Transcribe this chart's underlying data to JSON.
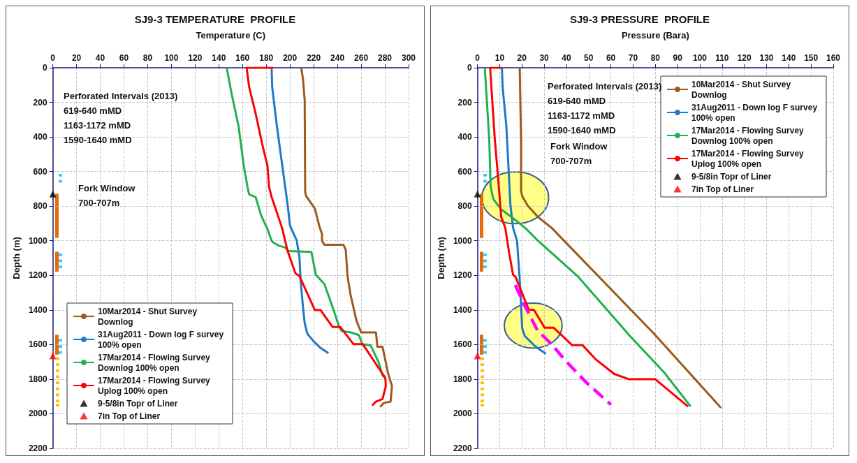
{
  "chart_data": [
    {
      "type": "line",
      "title": "SJ9-3 TEMPERATURE  PROFILE",
      "xlabel": "Temperature (C)",
      "ylabel": "Depth (m)",
      "xlim": [
        0,
        300
      ],
      "xticks": [
        0,
        20,
        40,
        60,
        80,
        100,
        120,
        140,
        160,
        180,
        200,
        220,
        240,
        260,
        280,
        300
      ],
      "ylim": [
        2200,
        0
      ],
      "yticks": [
        0,
        200,
        400,
        600,
        800,
        1000,
        1200,
        1400,
        1600,
        1800,
        2000,
        2200
      ],
      "grid": true,
      "legend": "bottom left",
      "marker": "none",
      "line_style": "solid",
      "annotations": [
        "Perforated Intervals (2013)\n619-640 mMD\n1163-1172 mMD\n1590-1640 mMD",
        "Fork Window\n700-707m"
      ],
      "series": [
        {
          "name": "10Mar2014 - Shut Survey Downlog",
          "color": "#9c5a1c",
          "x": [
            209.5,
            211,
            212.4,
            212.8,
            213.5,
            221,
            224.6,
            227,
            227,
            229,
            245,
            247,
            248.5,
            251,
            256,
            260,
            272.5,
            273.7,
            278,
            282.6,
            286,
            284.8,
            279,
            276
          ],
          "values": [
            0,
            68,
            189,
            717,
            740,
            815,
            913,
            962,
            1000,
            1023,
            1023,
            1053,
            1204,
            1310,
            1461,
            1530,
            1530,
            1613,
            1613,
            1764,
            1840,
            1930,
            1938,
            1961
          ]
        },
        {
          "name": "31Aug2011 - Down log F survey 100% open",
          "color": "#1f78c8",
          "x": [
            184.5,
            185,
            189,
            193.5,
            198,
            200,
            205.7,
            208,
            209,
            211,
            212.4,
            214.6,
            220,
            225.8,
            232.4
          ],
          "values": [
            0,
            113,
            340,
            566,
            792,
            913,
            1000,
            1098,
            1234,
            1386,
            1477,
            1537,
            1582,
            1620,
            1650
          ]
        },
        {
          "name": "17Mar2014 - Flowing Survey Downlog 100% open",
          "color": "#20b050",
          "x": [
            146.6,
            151,
            156.7,
            161,
            164.5,
            165.6,
            171,
            175.6,
            181,
            184.5,
            185.5,
            191,
            195.7,
            199,
            218,
            221.8,
            229,
            236,
            241.5,
            243.6,
            251.4,
            258,
            261,
            268,
            274.8,
            278,
            280.4
          ],
          "values": [
            0,
            158,
            340,
            566,
            702,
            732,
            747,
            853,
            932,
            1000,
            1008,
            1030,
            1038,
            1060,
            1065,
            1197,
            1250,
            1386,
            1499,
            1522,
            1530,
            1545,
            1598,
            1605,
            1703,
            1779,
            1794
          ]
        },
        {
          "name": "17Mar2014 - Flowing Survey Uplog 100% open",
          "color": "#ff0000",
          "x": [
            186,
            163.4,
            165.6,
            171,
            176.7,
            181,
            182.3,
            184.5,
            193.4,
            198,
            204.6,
            208,
            221,
            225.8,
            236,
            242.5,
            253.6,
            261.4,
            280.4,
            280.8,
            278,
            272.5,
            269.2
          ],
          "values": [
            0,
            0,
            113,
            264,
            445,
            566,
            687,
            747,
            928,
            1060,
            1189,
            1204,
            1401,
            1401,
            1499,
            1499,
            1598,
            1598,
            1794,
            1840,
            1915,
            1930,
            1953
          ]
        },
        {
          "name": "9-5/8in Topr of Liner",
          "type": "scatter",
          "marker": "triangle",
          "color": "#000000",
          "x": [
            0
          ],
          "values": [
            730
          ]
        },
        {
          "name": "7in Top of Liner",
          "type": "scatter",
          "marker": "triangle",
          "color": "#ff0000",
          "x": [
            0
          ],
          "values": [
            1665
          ]
        }
      ]
    },
    {
      "type": "line",
      "title": "SJ9-3 PRESSURE  PROFILE",
      "xlabel": "Pressure (Bara)",
      "ylabel": "Depth (m)",
      "xlim": [
        0,
        160
      ],
      "xticks": [
        0,
        10,
        20,
        30,
        40,
        50,
        60,
        70,
        80,
        90,
        100,
        110,
        120,
        130,
        140,
        150,
        160
      ],
      "ylim": [
        2200,
        0
      ],
      "yticks": [
        0,
        200,
        400,
        600,
        800,
        1000,
        1200,
        1400,
        1600,
        1800,
        2000,
        2200
      ],
      "grid": true,
      "legend": "top right",
      "marker": "none",
      "line_style": "solid",
      "annotations": [
        "Perforated Intervals (2013)\n619-640 mMD\n1163-1172 mMD\n1590-1640 mMD",
        "Fork Window\n700-707m"
      ],
      "series": [
        {
          "name": "10Mar2014 - Shut Survey Downlog",
          "color": "#9c5a1c",
          "x": [
            19,
            19.6,
            19.6,
            20.2,
            22.6,
            27.3,
            33.3,
            79.3,
            109.5
          ],
          "values": [
            0,
            413,
            714,
            744,
            797,
            864,
            925,
            1536,
            1966
          ]
        },
        {
          "name": "31Aug2011 - Down log F survey 100% open",
          "color": "#1f78c8",
          "x": [
            11,
            11.3,
            13,
            13.9,
            14.8,
            16,
            17.8,
            18.9,
            19.5,
            20.1,
            21.3,
            26,
            30.8
          ],
          "values": [
            0,
            111,
            337,
            563,
            789,
            925,
            1000,
            1204,
            1340,
            1506,
            1551,
            1611,
            1654
          ]
        },
        {
          "name": "17Mar2014 - Flowing Survey Downlog 100% open",
          "color": "#20b050",
          "x": [
            3.3,
            5.3,
            5.9,
            7.1,
            10.7,
            15.4,
            21.4,
            27.2,
            45,
            68.6,
            84,
            95.9
          ],
          "values": [
            0,
            413,
            684,
            759,
            819,
            864,
            925,
            1000,
            1204,
            1551,
            1762,
            1958
          ]
        },
        {
          "name": "17Mar2014 - Flowing Survey Uplog 100% open",
          "color": "#ff0000",
          "x": [
            11,
            5.7,
            7.8,
            9.3,
            10.7,
            12.5,
            14.2,
            16,
            17.2,
            23.1,
            25.4,
            30.2,
            34.3,
            42.6,
            47.3,
            53.3,
            61.5,
            68,
            79.9,
            94.7
          ],
          "values": [
            0,
            0,
            413,
            638,
            864,
            925,
            1068,
            1196,
            1211,
            1400,
            1400,
            1503,
            1503,
            1604,
            1604,
            1687,
            1770,
            1800,
            1800,
            1958
          ]
        },
        {
          "name": "9-5/8in Topr of Liner",
          "type": "scatter",
          "marker": "triangle",
          "color": "#000000",
          "x": [
            0
          ],
          "values": [
            730
          ]
        },
        {
          "name": "7in Top of Liner",
          "type": "scatter",
          "marker": "triangle",
          "color": "#ff0000",
          "x": [
            0
          ],
          "values": [
            1665
          ]
        },
        {
          "color": "#ff00ff",
          "line_style": "dashed",
          "x": [
            17,
            21,
            27,
            33,
            40,
            49,
            60
          ],
          "values": [
            1256,
            1368,
            1519,
            1594,
            1699,
            1820,
            1947
          ]
        }
      ]
    }
  ]
}
